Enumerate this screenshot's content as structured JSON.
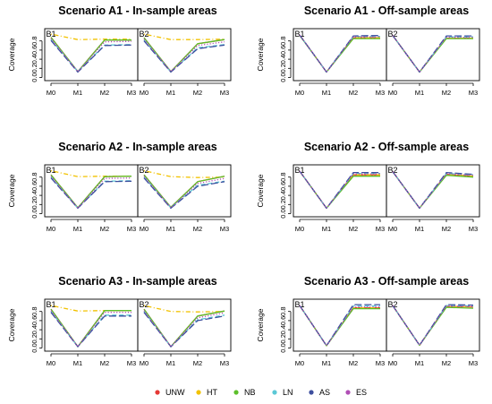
{
  "chart_data": {
    "type": "line",
    "x_categories": [
      "M0",
      "M1",
      "M2",
      "M3"
    ],
    "ylabel": "Coverage",
    "y_ticks": [
      "0.0",
      "0.2",
      "0.4",
      "0.6",
      "0.8"
    ],
    "ylim": [
      0,
      1
    ],
    "grid": false,
    "legend_position": "bottom",
    "series_styles": [
      {
        "name": "UNW",
        "color": "#e53935",
        "dash": "none"
      },
      {
        "name": "HT",
        "color": "#f2c200",
        "dash": "dotdash"
      },
      {
        "name": "NB",
        "color": "#5cbf2a",
        "dash": "none"
      },
      {
        "name": "LN",
        "color": "#5bc8d6",
        "dash": "dash"
      },
      {
        "name": "AS",
        "color": "#3d4f9e",
        "dash": "longdash"
      },
      {
        "name": "ES",
        "color": "#b04fb5",
        "dash": "dotted"
      }
    ],
    "panels": [
      {
        "title": "Scenario A1 - In-sample areas",
        "facets": [
          {
            "label": "B1",
            "series": {
              "UNW": [
                0.88,
                0.13,
                0.82,
                0.82
              ],
              "HT": [
                0.95,
                0.83,
                0.84,
                0.84
              ],
              "NB": [
                0.88,
                0.13,
                0.82,
                0.82
              ],
              "LN": [
                0.83,
                0.13,
                0.71,
                0.72
              ],
              "AS": [
                0.81,
                0.12,
                0.7,
                0.71
              ],
              "ES": [
                0.85,
                0.13,
                0.78,
                0.79
              ]
            }
          },
          {
            "label": "B2",
            "series": {
              "UNW": [
                0.87,
                0.13,
                0.74,
                0.83
              ],
              "HT": [
                0.95,
                0.83,
                0.83,
                0.84
              ],
              "NB": [
                0.87,
                0.13,
                0.74,
                0.83
              ],
              "LN": [
                0.82,
                0.12,
                0.65,
                0.72
              ],
              "AS": [
                0.8,
                0.12,
                0.63,
                0.71
              ],
              "ES": [
                0.84,
                0.13,
                0.7,
                0.78
              ]
            }
          }
        ]
      },
      {
        "title": "Scenario A1 - Off-sample areas",
        "facets": [
          {
            "label": "B1",
            "series": {
              "UNW": [
                0.93,
                0.12,
                0.87,
                0.87
              ],
              "HT": [
                0.93,
                0.12,
                0.87,
                0.87
              ],
              "NB": [
                0.92,
                0.12,
                0.85,
                0.85
              ],
              "LN": [
                0.93,
                0.12,
                0.9,
                0.9
              ],
              "AS": [
                0.93,
                0.12,
                0.91,
                0.92
              ],
              "ES": [
                0.93,
                0.12,
                0.89,
                0.89
              ]
            }
          },
          {
            "label": "B2",
            "series": {
              "UNW": [
                0.92,
                0.12,
                0.86,
                0.86
              ],
              "HT": [
                0.92,
                0.12,
                0.86,
                0.86
              ],
              "NB": [
                0.92,
                0.12,
                0.85,
                0.85
              ],
              "LN": [
                0.92,
                0.12,
                0.89,
                0.89
              ],
              "AS": [
                0.92,
                0.12,
                0.91,
                0.91
              ],
              "ES": [
                0.92,
                0.12,
                0.88,
                0.88
              ]
            }
          }
        ]
      },
      {
        "title": "Scenario A2 - In-sample areas",
        "facets": [
          {
            "label": "B1",
            "series": {
              "UNW": [
                0.85,
                0.13,
                0.81,
                0.82
              ],
              "HT": [
                0.94,
                0.81,
                0.82,
                0.82
              ],
              "NB": [
                0.85,
                0.13,
                0.81,
                0.82
              ],
              "LN": [
                0.8,
                0.12,
                0.71,
                0.72
              ],
              "AS": [
                0.78,
                0.12,
                0.7,
                0.71
              ],
              "ES": [
                0.82,
                0.12,
                0.77,
                0.78
              ]
            }
          },
          {
            "label": "B2",
            "series": {
              "UNW": [
                0.85,
                0.14,
                0.7,
                0.82
              ],
              "HT": [
                0.94,
                0.81,
                0.79,
                0.8
              ],
              "NB": [
                0.85,
                0.14,
                0.7,
                0.82
              ],
              "LN": [
                0.8,
                0.13,
                0.62,
                0.71
              ],
              "AS": [
                0.78,
                0.12,
                0.6,
                0.7
              ],
              "ES": [
                0.82,
                0.13,
                0.66,
                0.77
              ]
            }
          }
        ]
      },
      {
        "title": "Scenario A2 - Off-sample areas",
        "facets": [
          {
            "label": "B1",
            "series": {
              "UNW": [
                0.93,
                0.12,
                0.85,
                0.85
              ],
              "HT": [
                0.93,
                0.12,
                0.85,
                0.85
              ],
              "NB": [
                0.93,
                0.12,
                0.82,
                0.82
              ],
              "LN": [
                0.93,
                0.12,
                0.88,
                0.88
              ],
              "AS": [
                0.93,
                0.12,
                0.9,
                0.9
              ],
              "ES": [
                0.93,
                0.12,
                0.87,
                0.87
              ]
            }
          },
          {
            "label": "B2",
            "series": {
              "UNW": [
                0.92,
                0.12,
                0.86,
                0.82
              ],
              "HT": [
                0.92,
                0.12,
                0.86,
                0.82
              ],
              "NB": [
                0.92,
                0.12,
                0.84,
                0.8
              ],
              "LN": [
                0.92,
                0.12,
                0.88,
                0.85
              ],
              "AS": [
                0.92,
                0.12,
                0.9,
                0.86
              ],
              "ES": [
                0.92,
                0.12,
                0.87,
                0.84
              ]
            }
          }
        ]
      },
      {
        "title": "Scenario A3 - In-sample areas",
        "facets": [
          {
            "label": "B1",
            "series": {
              "UNW": [
                0.85,
                0.03,
                0.82,
                0.82
              ],
              "HT": [
                0.93,
                0.81,
                0.82,
                0.82
              ],
              "NB": [
                0.85,
                0.03,
                0.82,
                0.82
              ],
              "LN": [
                0.8,
                0.03,
                0.72,
                0.72
              ],
              "AS": [
                0.78,
                0.03,
                0.7,
                0.7
              ],
              "ES": [
                0.82,
                0.03,
                0.78,
                0.78
              ]
            }
          },
          {
            "label": "B2",
            "series": {
              "UNW": [
                0.85,
                0.03,
                0.7,
                0.81
              ],
              "HT": [
                0.93,
                0.8,
                0.79,
                0.8
              ],
              "NB": [
                0.85,
                0.03,
                0.7,
                0.81
              ],
              "LN": [
                0.8,
                0.03,
                0.62,
                0.72
              ],
              "AS": [
                0.78,
                0.03,
                0.6,
                0.7
              ],
              "ES": [
                0.82,
                0.03,
                0.66,
                0.77
              ]
            }
          }
        ]
      },
      {
        "title": "Scenario A3 - Off-sample areas",
        "facets": [
          {
            "label": "B1",
            "series": {
              "UNW": [
                0.93,
                0.05,
                0.88,
                0.88
              ],
              "HT": [
                0.93,
                0.05,
                0.88,
                0.88
              ],
              "NB": [
                0.93,
                0.05,
                0.86,
                0.86
              ],
              "LN": [
                0.93,
                0.05,
                0.92,
                0.92
              ],
              "AS": [
                0.93,
                0.05,
                0.95,
                0.95
              ],
              "ES": [
                0.93,
                0.05,
                0.9,
                0.9
              ]
            }
          },
          {
            "label": "B2",
            "series": {
              "UNW": [
                0.93,
                0.06,
                0.91,
                0.9
              ],
              "HT": [
                0.93,
                0.06,
                0.91,
                0.9
              ],
              "NB": [
                0.93,
                0.06,
                0.89,
                0.87
              ],
              "LN": [
                0.93,
                0.06,
                0.93,
                0.92
              ],
              "AS": [
                0.93,
                0.06,
                0.95,
                0.94
              ],
              "ES": [
                0.93,
                0.06,
                0.92,
                0.91
              ]
            }
          }
        ]
      }
    ]
  }
}
